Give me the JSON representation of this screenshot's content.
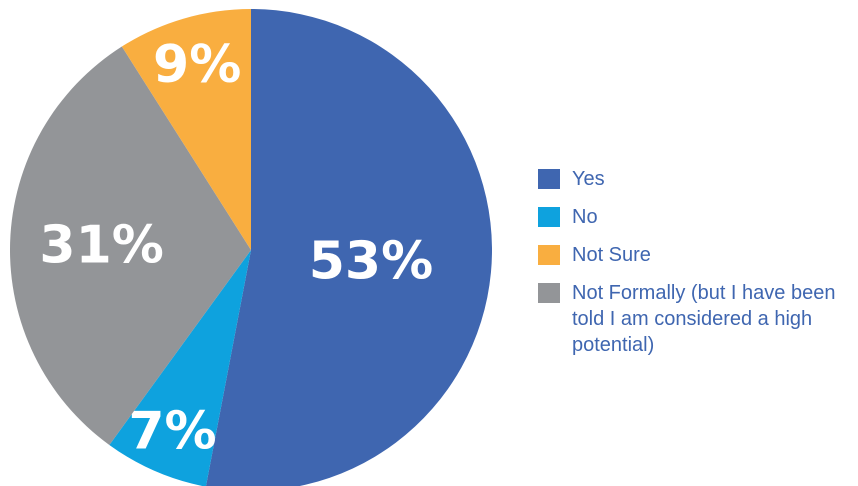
{
  "chart_data": {
    "type": "pie",
    "slices": [
      {
        "label": "Yes",
        "value": 53,
        "display": "53%",
        "color": "#3f66b0"
      },
      {
        "label": "No",
        "value": 7,
        "display": "7%",
        "color": "#0ea2de"
      },
      {
        "label": "Not Formally (but I have been told I am considered a high potential)",
        "value": 31,
        "display": "31%",
        "color": "#939598"
      },
      {
        "label": "Not Sure",
        "value": 9,
        "display": "9%",
        "color": "#f9ae40"
      }
    ],
    "legend": [
      {
        "label": "Yes",
        "color": "#3f66b0"
      },
      {
        "label": "No",
        "color": "#0ea2de"
      },
      {
        "label": "Not Sure",
        "color": "#f9ae40"
      },
      {
        "label": "Not Formally (but I have been told I am considered a high potential)",
        "color": "#939598"
      }
    ],
    "start": "12 o'clock",
    "direction": "clockwise",
    "legend_position": "right"
  }
}
